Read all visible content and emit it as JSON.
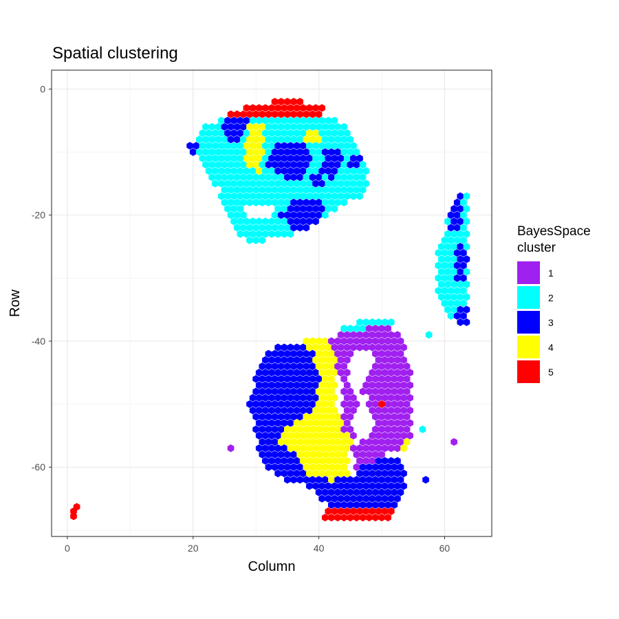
{
  "chart_data": {
    "type": "scatter",
    "title": "Spatial clustering",
    "xlabel": "Column",
    "ylabel": "Row",
    "xlim": [
      -2.5,
      67.5
    ],
    "ylim": [
      -71,
      3
    ],
    "x_ticks": [
      0,
      20,
      40,
      60
    ],
    "y_ticks": [
      0,
      -20,
      -40,
      -60
    ],
    "grid": true,
    "legend": {
      "title": "BayesSpace cluster",
      "position": "right",
      "entries": [
        "1",
        "2",
        "3",
        "4",
        "5"
      ]
    },
    "cluster_colors": {
      "1": "#A020F0",
      "2": "#00FFFF",
      "3": "#0000FF",
      "4": "#FFFF00",
      "5": "#FF0000"
    },
    "regions": [
      {
        "cluster": "2",
        "polygon": [
          [
            20,
            -10
          ],
          [
            22,
            -6
          ],
          [
            26,
            -4
          ],
          [
            42,
            -4
          ],
          [
            45,
            -7
          ],
          [
            47,
            -10
          ],
          [
            48,
            -14
          ],
          [
            47,
            -17
          ],
          [
            43,
            -19
          ],
          [
            40,
            -21
          ],
          [
            36,
            -23
          ],
          [
            32,
            -24
          ],
          [
            28,
            -24
          ],
          [
            25,
            -20
          ],
          [
            24,
            -16
          ],
          [
            22,
            -13
          ]
        ]
      },
      {
        "cluster": "3",
        "polygon": [
          [
            26,
            -4
          ],
          [
            29,
            -4
          ],
          [
            28,
            -8
          ],
          [
            26,
            -9
          ],
          [
            25,
            -6
          ]
        ]
      },
      {
        "cluster": "3",
        "polygon": [
          [
            33,
            -9
          ],
          [
            38,
            -8
          ],
          [
            39,
            -12
          ],
          [
            37,
            -15
          ],
          [
            34,
            -14
          ],
          [
            32,
            -12
          ]
        ]
      },
      {
        "cluster": "3",
        "polygon": [
          [
            36,
            -18
          ],
          [
            40,
            -17
          ],
          [
            41,
            -20
          ],
          [
            38,
            -23
          ],
          [
            35,
            -22
          ],
          [
            34,
            -20
          ]
        ]
      },
      {
        "cluster": "3",
        "polygon": [
          [
            19.5,
            -9
          ],
          [
            21,
            -8.5
          ],
          [
            21,
            -10.5
          ],
          [
            19.5,
            -10.5
          ]
        ]
      },
      {
        "cluster": "3",
        "polygon": [
          [
            41,
            -10
          ],
          [
            43,
            -9
          ],
          [
            44,
            -12
          ],
          [
            42,
            -14
          ],
          [
            40,
            -13
          ]
        ]
      },
      {
        "cluster": "3",
        "polygon": [
          [
            45,
            -10
          ],
          [
            47,
            -10
          ],
          [
            47,
            -12
          ],
          [
            45,
            -12
          ]
        ]
      },
      {
        "cluster": "3",
        "polygon": [
          [
            39,
            -13
          ],
          [
            41,
            -13
          ],
          [
            41,
            -15
          ],
          [
            39,
            -15
          ]
        ]
      },
      {
        "cluster": "4",
        "polygon": [
          [
            29,
            -6
          ],
          [
            31,
            -5
          ],
          [
            31.5,
            -9
          ],
          [
            30.5,
            -13
          ],
          [
            28.5,
            -12
          ],
          [
            28.5,
            -8
          ]
        ]
      },
      {
        "cluster": "4",
        "polygon": [
          [
            38,
            -6
          ],
          [
            40.5,
            -6
          ],
          [
            40.5,
            -8
          ],
          [
            38,
            -8
          ]
        ]
      },
      {
        "cluster": "5",
        "polygon": [
          [
            26,
            -4
          ],
          [
            28,
            -3
          ],
          [
            33,
            -2
          ],
          [
            36,
            -1
          ],
          [
            38,
            -2
          ],
          [
            41,
            -3
          ],
          [
            41,
            -4.5
          ],
          [
            26,
            -4.5
          ]
        ]
      },
      {
        "cluster": "2",
        "polygon": [
          [
            59,
            -26
          ],
          [
            61,
            -19
          ],
          [
            63,
            -16
          ],
          [
            64,
            -17
          ],
          [
            64,
            -36
          ],
          [
            62,
            -37
          ],
          [
            60,
            -36
          ],
          [
            59,
            -33
          ]
        ]
      },
      {
        "cluster": "3",
        "polygon": [
          [
            61,
            -19
          ],
          [
            63,
            -16
          ],
          [
            63,
            -22
          ],
          [
            61,
            -23
          ]
        ]
      },
      {
        "cluster": "3",
        "polygon": [
          [
            62,
            -26
          ],
          [
            63,
            -24
          ],
          [
            64,
            -27
          ],
          [
            63,
            -31
          ],
          [
            62,
            -30
          ]
        ]
      },
      {
        "cluster": "3",
        "polygon": [
          [
            62,
            -35
          ],
          [
            64,
            -34
          ],
          [
            64,
            -37
          ],
          [
            62,
            -37
          ]
        ]
      },
      {
        "cluster": "3",
        "polygon": [
          [
            30,
            -46
          ],
          [
            32,
            -42
          ],
          [
            34,
            -40
          ],
          [
            38,
            -40
          ],
          [
            40,
            -42
          ],
          [
            41,
            -46
          ],
          [
            40,
            -50
          ],
          [
            39,
            -55
          ],
          [
            38,
            -57
          ],
          [
            38,
            -60
          ],
          [
            40,
            -62
          ],
          [
            42,
            -61
          ],
          [
            45,
            -62
          ],
          [
            47,
            -60
          ],
          [
            50,
            -58
          ],
          [
            53,
            -59
          ],
          [
            54,
            -61
          ],
          [
            54,
            -64
          ],
          [
            52,
            -67
          ],
          [
            48,
            -68
          ],
          [
            44,
            -68
          ],
          [
            41,
            -66
          ],
          [
            38,
            -63
          ],
          [
            34,
            -62
          ],
          [
            31,
            -60
          ],
          [
            30,
            -55
          ],
          [
            29,
            -50
          ]
        ]
      },
      {
        "cluster": "4",
        "polygon": [
          [
            36.5,
            -39
          ],
          [
            40,
            -39
          ],
          [
            42,
            -40
          ],
          [
            43,
            -43
          ],
          [
            43,
            -50
          ],
          [
            44,
            -54
          ],
          [
            46,
            -56
          ],
          [
            48,
            -58
          ],
          [
            51,
            -58
          ],
          [
            53,
            -57
          ],
          [
            54,
            -58
          ],
          [
            55,
            -55
          ],
          [
            54,
            -54
          ],
          [
            51,
            -55
          ],
          [
            48,
            -56
          ],
          [
            45,
            -58
          ],
          [
            45,
            -61
          ],
          [
            42,
            -62
          ],
          [
            38,
            -61
          ],
          [
            36,
            -58
          ],
          [
            34,
            -56
          ],
          [
            35,
            -54
          ],
          [
            38,
            -52
          ],
          [
            40,
            -49
          ],
          [
            40,
            -46
          ],
          [
            39,
            -42
          ]
        ]
      },
      {
        "cluster": "1",
        "polygon": [
          [
            42,
            -40
          ],
          [
            44,
            -38
          ],
          [
            47,
            -37
          ],
          [
            49,
            -37
          ],
          [
            52,
            -38
          ],
          [
            54,
            -42
          ],
          [
            55,
            -47
          ],
          [
            55,
            -55
          ],
          [
            53,
            -57
          ],
          [
            51,
            -58
          ],
          [
            49,
            -59
          ],
          [
            46,
            -60
          ],
          [
            45,
            -56
          ],
          [
            44,
            -54
          ],
          [
            44,
            -49
          ],
          [
            43,
            -45
          ]
        ]
      },
      {
        "cluster": "2",
        "polygon": [
          [
            44,
            -38
          ],
          [
            47,
            -36.5
          ],
          [
            52,
            -36.5
          ],
          [
            52,
            -37.5
          ],
          [
            44,
            -38.5
          ]
        ]
      },
      {
        "cluster": "5",
        "polygon": [
          [
            41,
            -66.5
          ],
          [
            52,
            -66.5
          ],
          [
            52,
            -68
          ],
          [
            41,
            -68
          ]
        ]
      }
    ],
    "holes": [
      {
        "polygon": [
          [
            44.5,
            -44
          ],
          [
            46,
            -42
          ],
          [
            48,
            -41
          ],
          [
            49,
            -43
          ],
          [
            48,
            -46
          ],
          [
            47,
            -48
          ],
          [
            48,
            -50
          ],
          [
            49,
            -53
          ],
          [
            48,
            -55
          ],
          [
            46,
            -56
          ],
          [
            45,
            -53
          ],
          [
            46,
            -50
          ],
          [
            45,
            -47
          ]
        ]
      },
      {
        "polygon": [
          [
            27.5,
            -18
          ],
          [
            32,
            -18
          ],
          [
            33,
            -20
          ],
          [
            30,
            -21
          ],
          [
            28,
            -20
          ]
        ]
      }
    ],
    "points": [
      {
        "x": 1,
        "y": -67,
        "cluster": "5"
      },
      {
        "x": 1.5,
        "y": -66.3,
        "cluster": "5"
      },
      {
        "x": 1,
        "y": -67.8,
        "cluster": "5"
      },
      {
        "x": 26,
        "y": -57,
        "cluster": "1"
      },
      {
        "x": 61.5,
        "y": -56,
        "cluster": "1"
      },
      {
        "x": 57.5,
        "y": -39,
        "cluster": "2"
      },
      {
        "x": 57,
        "y": -62,
        "cluster": "3"
      },
      {
        "x": 50,
        "y": -50,
        "cluster": "5"
      },
      {
        "x": 56.5,
        "y": -54,
        "cluster": "2"
      }
    ]
  }
}
